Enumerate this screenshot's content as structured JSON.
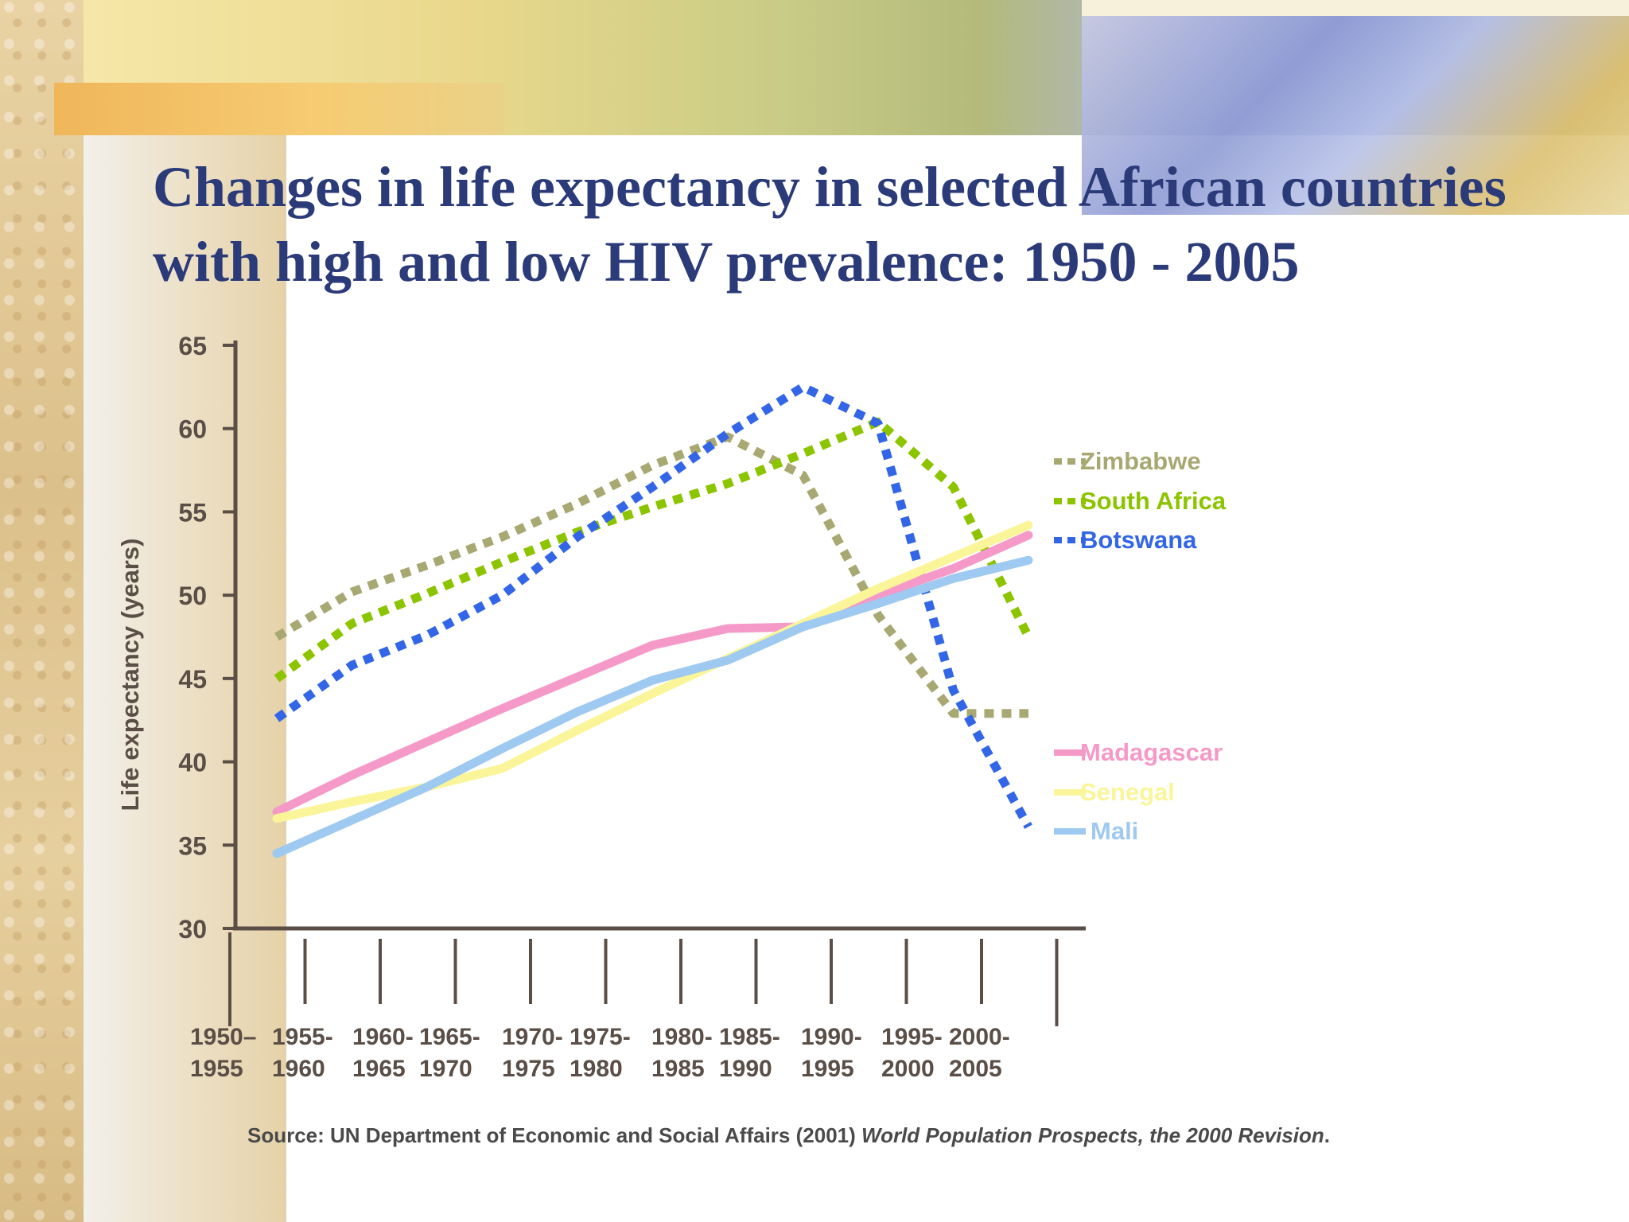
{
  "slide": {
    "title_line1": "Changes in life expectancy in selected African countries",
    "title_line2": "with high and low HIV prevalence: 1950 - 2005",
    "source_plain": "Source:  UN Department of Economic and Social Affairs (2001)  ",
    "source_italic": "World Population Prospects, the 2000 Revision",
    "source_end": "."
  },
  "chart_data": {
    "type": "line",
    "ylabel": "Life expectancy (years)",
    "ylim": [
      30,
      65
    ],
    "yticks": [
      30,
      35,
      40,
      45,
      50,
      55,
      60,
      65
    ],
    "categories": [
      "1950–1955",
      "1955-1960",
      "1960-1965",
      "1965-1970",
      "1970-1975",
      "1975-1980",
      "1980-1985",
      "1985-1990",
      "1990-1995",
      "1995-2000",
      "2000-2005"
    ],
    "category_labels": [
      [
        "1950–",
        "1955"
      ],
      [
        "1955-",
        "1960"
      ],
      [
        "1960-",
        "1965"
      ],
      [
        "1965-",
        "1970"
      ],
      [
        "1970-",
        "1975"
      ],
      [
        "1975-",
        "1980"
      ],
      [
        "1980-",
        "1985"
      ],
      [
        "1985-",
        "1990"
      ],
      [
        "1990-",
        "1995"
      ],
      [
        "1995-",
        "2000"
      ],
      [
        "2000-",
        "2005"
      ]
    ],
    "series": [
      {
        "name": "Zimbabwe",
        "style": "dotted",
        "color": "#a8a873",
        "values": [
          47.5,
          50.2,
          51.8,
          53.5,
          55.5,
          57.8,
          59.5,
          57.2,
          48.8,
          42.9,
          42.9
        ]
      },
      {
        "name": "South Africa",
        "style": "dotted",
        "color": "#8cc400",
        "values": [
          45.0,
          48.3,
          50.1,
          52.0,
          53.8,
          55.3,
          56.7,
          58.5,
          60.4,
          56.5,
          47.5
        ]
      },
      {
        "name": "Botswana",
        "style": "dotted",
        "color": "#3366e6",
        "values": [
          42.6,
          45.8,
          47.6,
          50.0,
          53.5,
          56.5,
          59.7,
          62.5,
          60.3,
          44.3,
          36.1
        ]
      },
      {
        "name": "Madagascar",
        "style": "solid",
        "color": "#f59ac8",
        "values": [
          37.0,
          39.2,
          41.2,
          43.2,
          45.1,
          47.0,
          48.0,
          48.1,
          50.0,
          51.6,
          53.6
        ]
      },
      {
        "name": "Senegal",
        "style": "solid",
        "color": "#fbf59a",
        "values": [
          36.6,
          37.6,
          38.5,
          39.6,
          41.9,
          44.1,
          46.2,
          48.3,
          50.4,
          52.3,
          54.2
        ]
      },
      {
        "name": "Mali",
        "style": "solid",
        "color": "#9ec9f0",
        "values": [
          34.5,
          36.5,
          38.5,
          40.8,
          43.0,
          44.9,
          46.1,
          48.1,
          49.5,
          51.0,
          52.1
        ]
      }
    ],
    "grid": false,
    "legend_position": "right"
  }
}
